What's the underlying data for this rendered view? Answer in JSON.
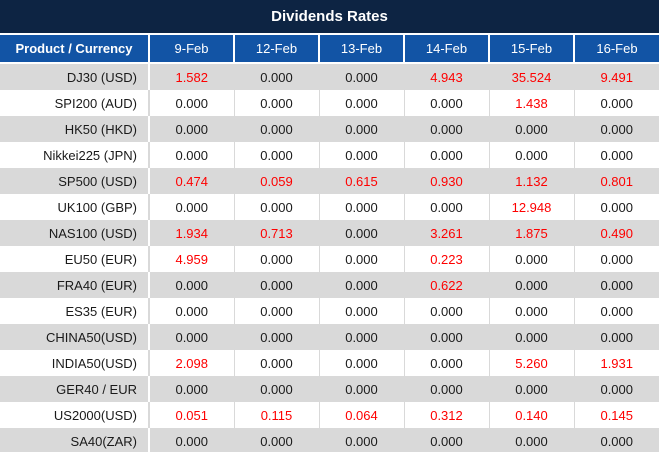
{
  "title": "Dividends Rates",
  "table": {
    "product_header": "Product / Currency",
    "date_headers": [
      "9-Feb",
      "12-Feb",
      "13-Feb",
      "14-Feb",
      "15-Feb",
      "16-Feb"
    ],
    "rows": [
      {
        "product": "DJ30 (USD)",
        "values": [
          "1.582",
          "0.000",
          "0.000",
          "4.943",
          "35.524",
          "9.491"
        ]
      },
      {
        "product": "SPI200 (AUD)",
        "values": [
          "0.000",
          "0.000",
          "0.000",
          "0.000",
          "1.438",
          "0.000"
        ]
      },
      {
        "product": "HK50 (HKD)",
        "values": [
          "0.000",
          "0.000",
          "0.000",
          "0.000",
          "0.000",
          "0.000"
        ]
      },
      {
        "product": "Nikkei225 (JPN)",
        "values": [
          "0.000",
          "0.000",
          "0.000",
          "0.000",
          "0.000",
          "0.000"
        ]
      },
      {
        "product": "SP500 (USD)",
        "values": [
          "0.474",
          "0.059",
          "0.615",
          "0.930",
          "1.132",
          "0.801"
        ]
      },
      {
        "product": "UK100 (GBP)",
        "values": [
          "0.000",
          "0.000",
          "0.000",
          "0.000",
          "12.948",
          "0.000"
        ]
      },
      {
        "product": "NAS100 (USD)",
        "values": [
          "1.934",
          "0.713",
          "0.000",
          "3.261",
          "1.875",
          "0.490"
        ]
      },
      {
        "product": "EU50 (EUR)",
        "values": [
          "4.959",
          "0.000",
          "0.000",
          "0.223",
          "0.000",
          "0.000"
        ]
      },
      {
        "product": "FRA40 (EUR)",
        "values": [
          "0.000",
          "0.000",
          "0.000",
          "0.622",
          "0.000",
          "0.000"
        ]
      },
      {
        "product": "ES35 (EUR)",
        "values": [
          "0.000",
          "0.000",
          "0.000",
          "0.000",
          "0.000",
          "0.000"
        ]
      },
      {
        "product": "CHINA50(USD)",
        "values": [
          "0.000",
          "0.000",
          "0.000",
          "0.000",
          "0.000",
          "0.000"
        ]
      },
      {
        "product": "INDIA50(USD)",
        "values": [
          "2.098",
          "0.000",
          "0.000",
          "0.000",
          "5.260",
          "1.931"
        ]
      },
      {
        "product": "GER40 / EUR",
        "values": [
          "0.000",
          "0.000",
          "0.000",
          "0.000",
          "0.000",
          "0.000"
        ]
      },
      {
        "product": "US2000(USD)",
        "values": [
          "0.051",
          "0.115",
          "0.064",
          "0.312",
          "0.140",
          "0.145"
        ]
      },
      {
        "product": "SA40(ZAR)",
        "values": [
          "0.000",
          "0.000",
          "0.000",
          "0.000",
          "0.000",
          "0.000"
        ]
      }
    ]
  },
  "colors": {
    "title_bar_bg": "#0D2443",
    "header_bg": "#1254A5",
    "alt_row_bg": "#D9D9D9",
    "row_bg": "#FFFFFF",
    "nonzero_value_color": "#FE0000",
    "zero_value_color": "#1A1A1A",
    "header_text_color": "#FFFFFF"
  }
}
